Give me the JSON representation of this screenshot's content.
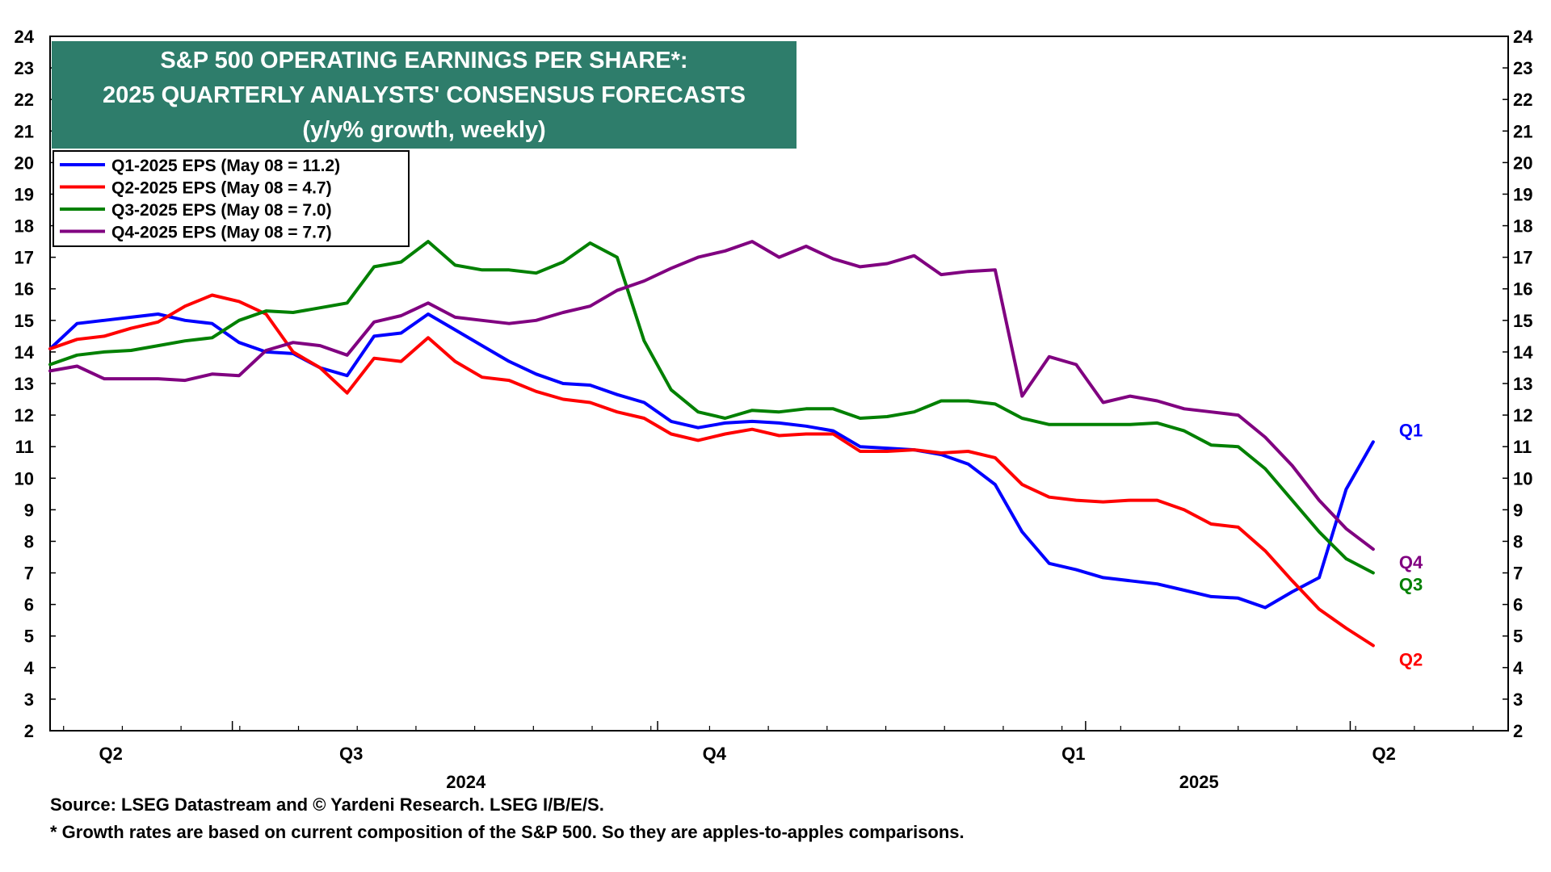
{
  "chart_data": {
    "type": "line",
    "title": [
      "S&P 500 OPERATING EARNINGS PER SHARE*:",
      "2025 QUARTERLY ANALYSTS' CONSENSUS FORECASTS",
      "(y/y% growth, weekly)"
    ],
    "ylim": [
      2,
      24
    ],
    "yticks": [
      2,
      3,
      4,
      5,
      6,
      7,
      8,
      9,
      10,
      11,
      12,
      13,
      14,
      15,
      16,
      17,
      18,
      19,
      20,
      21,
      22,
      23,
      24
    ],
    "x_range": [
      0,
      108
    ],
    "quarter_labels": [
      {
        "label": "Q2",
        "x": 4.5
      },
      {
        "label": "Q3",
        "x": 22.3
      },
      {
        "label": "Q4",
        "x": 49.2
      },
      {
        "label": "Q1",
        "x": 75.8
      },
      {
        "label": "Q2",
        "x": 98.8
      }
    ],
    "year_labels": [
      {
        "label": "2024",
        "x": 30.8
      },
      {
        "label": "2025",
        "x": 85.1
      }
    ],
    "week_x": [
      0,
      2,
      4,
      6,
      8,
      10,
      12,
      14,
      16,
      18,
      20,
      22,
      24,
      26,
      28,
      30,
      32,
      34,
      36,
      38,
      40,
      42,
      44,
      46,
      48,
      50,
      52,
      54,
      56,
      58,
      60,
      62,
      64,
      66,
      68,
      70,
      72,
      74,
      76,
      78,
      80,
      82,
      84,
      86,
      88,
      90,
      92,
      94,
      96,
      98,
      100
    ],
    "series": [
      {
        "name": "Q1-2025 EPS (May 08 = 11.2)",
        "end_label": "Q1",
        "color": "#0000ff",
        "values": [
          14.1,
          14.9,
          15.0,
          15.1,
          15.2,
          15.0,
          14.9,
          14.3,
          14.0,
          13.95,
          13.5,
          13.25,
          14.5,
          14.6,
          15.2,
          14.7,
          14.2,
          13.7,
          13.3,
          13.0,
          12.95,
          12.65,
          12.4,
          11.8,
          11.6,
          11.75,
          11.8,
          11.75,
          11.65,
          11.5,
          11.0,
          10.95,
          10.9,
          10.75,
          10.45,
          9.8,
          8.3,
          7.3,
          7.1,
          6.85,
          6.75,
          6.65,
          6.45,
          6.25,
          6.2,
          5.9,
          6.4,
          6.85,
          9.65,
          11.15,
          null
        ]
      },
      {
        "name": "Q2-2025 EPS (May 08 = 4.7)",
        "end_label": "Q2",
        "color": "#ff0000",
        "values": [
          14.1,
          14.4,
          14.5,
          14.75,
          14.95,
          15.45,
          15.8,
          15.6,
          15.2,
          14.0,
          13.5,
          12.7,
          13.8,
          13.7,
          14.45,
          13.7,
          13.2,
          13.1,
          12.75,
          12.5,
          12.4,
          12.1,
          11.9,
          11.4,
          11.2,
          11.4,
          11.55,
          11.35,
          11.4,
          11.4,
          10.85,
          10.85,
          10.9,
          10.8,
          10.85,
          10.65,
          9.8,
          9.4,
          9.3,
          9.25,
          9.3,
          9.3,
          9.0,
          8.55,
          8.45,
          7.7,
          6.75,
          5.85,
          5.25,
          4.7,
          null
        ]
      },
      {
        "name": "Q3-2025 EPS (May 08 = 7.0)",
        "end_label": "Q3",
        "color": "#008000",
        "values": [
          13.6,
          13.9,
          14.0,
          14.05,
          14.2,
          14.35,
          14.45,
          15.0,
          15.3,
          15.25,
          15.4,
          15.55,
          16.7,
          16.85,
          17.5,
          16.75,
          16.6,
          16.6,
          16.5,
          16.85,
          17.45,
          17.0,
          14.35,
          12.8,
          12.1,
          11.9,
          12.15,
          12.1,
          12.2,
          12.2,
          11.9,
          11.95,
          12.1,
          12.45,
          12.45,
          12.35,
          11.9,
          11.7,
          11.7,
          11.7,
          11.7,
          11.75,
          11.5,
          11.05,
          11.0,
          10.3,
          9.3,
          8.3,
          7.45,
          7.0,
          null
        ]
      },
      {
        "name": "Q4-2025 EPS (May 08 = 7.7)",
        "end_label": "Q4",
        "color": "#800080",
        "values": [
          13.4,
          13.55,
          13.15,
          13.15,
          13.15,
          13.1,
          13.3,
          13.25,
          14.05,
          14.3,
          14.2,
          13.9,
          14.95,
          15.15,
          15.55,
          15.1,
          15.0,
          14.9,
          15.0,
          15.25,
          15.45,
          15.95,
          16.25,
          16.65,
          17.0,
          17.2,
          17.5,
          17.0,
          17.35,
          16.95,
          16.7,
          16.8,
          17.05,
          16.45,
          16.55,
          16.6,
          12.6,
          13.85,
          13.6,
          12.4,
          12.6,
          12.45,
          12.2,
          12.1,
          12.0,
          11.3,
          10.4,
          9.3,
          8.4,
          7.75,
          null
        ]
      }
    ],
    "legend_position": "top-left",
    "grid": false
  },
  "footnotes": {
    "source": "Source: LSEG Datastream and © Yardeni Research. LSEG I/B/E/S.",
    "note": "* Growth rates are based on current composition of the S&P 500. So they are apples-to-apples comparisons."
  },
  "colors": {
    "title_bg": "#2e7d6b",
    "title_text": "#ffffff"
  }
}
